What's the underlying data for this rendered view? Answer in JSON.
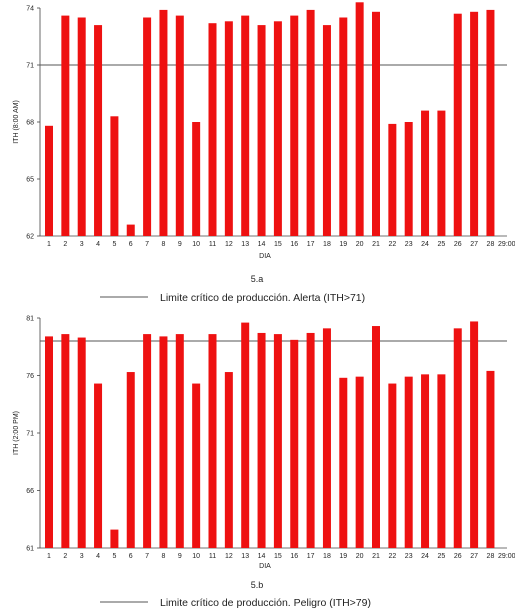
{
  "chart_data": [
    {
      "type": "bar",
      "categories": [
        "1",
        "2",
        "3",
        "4",
        "5",
        "6",
        "7",
        "8",
        "9",
        "10",
        "11",
        "12",
        "13",
        "14",
        "15",
        "16",
        "17",
        "18",
        "19",
        "20",
        "21",
        "22",
        "23",
        "24",
        "25",
        "26",
        "27",
        "28",
        "29:00"
      ],
      "values": [
        67.8,
        73.6,
        73.5,
        73.1,
        68.3,
        62.6,
        73.5,
        73.9,
        73.6,
        68.0,
        73.2,
        73.3,
        73.6,
        73.1,
        73.3,
        73.6,
        73.9,
        73.1,
        73.5,
        74.3,
        73.8,
        67.9,
        68.0,
        68.6,
        68.6,
        73.7,
        73.8,
        73.9,
        null
      ],
      "xlabel": "DIA",
      "ylabel": "ITH (8:00 AM)",
      "yticks": [
        62,
        65,
        68,
        71,
        74
      ],
      "ylim": [
        62,
        74
      ],
      "threshold": 71,
      "threshold_color": "#555555",
      "bar_color": "#ee1111",
      "caption": "5.a",
      "legend": "Limite crítico de producción. Alerta (ITH>71)"
    },
    {
      "type": "bar",
      "categories": [
        "1",
        "2",
        "3",
        "4",
        "5",
        "6",
        "7",
        "8",
        "9",
        "10",
        "11",
        "12",
        "13",
        "14",
        "15",
        "16",
        "17",
        "18",
        "19",
        "20",
        "21",
        "22",
        "23",
        "24",
        "25",
        "26",
        "27",
        "28",
        "29:00"
      ],
      "values": [
        79.4,
        79.6,
        79.3,
        75.3,
        62.6,
        76.3,
        79.6,
        79.4,
        79.6,
        75.3,
        79.6,
        76.3,
        80.6,
        79.7,
        79.6,
        79.1,
        79.7,
        80.1,
        75.8,
        75.9,
        80.3,
        75.3,
        75.9,
        76.1,
        76.1,
        80.1,
        80.7,
        76.4,
        null
      ],
      "xlabel": "DIA",
      "ylabel": "ITH (2:00 PM)",
      "yticks": [
        61,
        66,
        71,
        76,
        81
      ],
      "ylim": [
        61,
        81
      ],
      "threshold": 79,
      "threshold_color": "#555555",
      "bar_color": "#ee1111",
      "caption": "5.b",
      "legend": "Limite crítico de producción. Peligro (ITH>79)"
    }
  ]
}
